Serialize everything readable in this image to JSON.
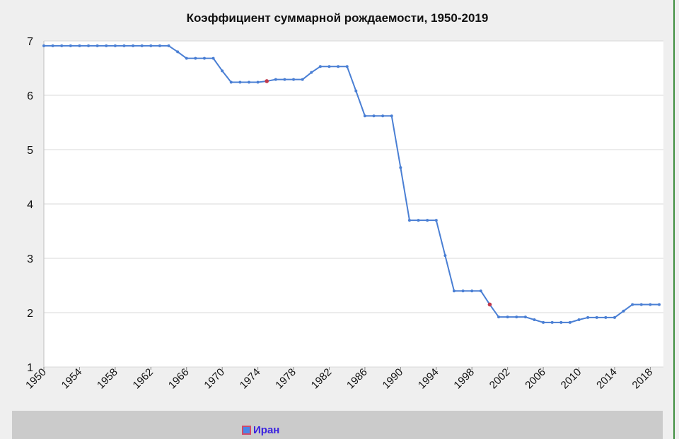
{
  "chart_data": {
    "type": "line",
    "title": "Коэффициент суммарной рождаемости, 1950-2019",
    "xlabel": "",
    "ylabel": "",
    "ylim": [
      1,
      7
    ],
    "yticks": [
      "1",
      "2",
      "3",
      "4",
      "5",
      "6",
      "7"
    ],
    "xlim": [
      1950,
      2019
    ],
    "xticks": [
      "1950",
      "1954",
      "1958",
      "1962",
      "1966",
      "1970",
      "1974",
      "1978",
      "1982",
      "1986",
      "1990",
      "1994",
      "1998",
      "2002",
      "2006",
      "2010",
      "2014",
      "2018"
    ],
    "grid": true,
    "legend_position": "bottom",
    "line_color": "#4a7fd4",
    "highlight_color": "#c0394b",
    "highlighted_years": [
      1975,
      2000
    ],
    "series": [
      {
        "name": "Иран",
        "x": [
          1950,
          1951,
          1952,
          1953,
          1954,
          1955,
          1956,
          1957,
          1958,
          1959,
          1960,
          1961,
          1962,
          1963,
          1964,
          1965,
          1966,
          1967,
          1968,
          1969,
          1970,
          1971,
          1972,
          1973,
          1974,
          1975,
          1976,
          1977,
          1978,
          1979,
          1980,
          1981,
          1982,
          1983,
          1984,
          1985,
          1986,
          1987,
          1988,
          1989,
          1990,
          1991,
          1992,
          1993,
          1994,
          1995,
          1996,
          1997,
          1998,
          1999,
          2000,
          2001,
          2002,
          2003,
          2004,
          2005,
          2006,
          2007,
          2008,
          2009,
          2010,
          2011,
          2012,
          2013,
          2014,
          2015,
          2016,
          2017,
          2018,
          2019
        ],
        "values": [
          6.91,
          6.91,
          6.91,
          6.91,
          6.91,
          6.91,
          6.91,
          6.91,
          6.91,
          6.91,
          6.91,
          6.91,
          6.91,
          6.91,
          6.91,
          6.8,
          6.68,
          6.68,
          6.68,
          6.68,
          6.45,
          6.24,
          6.24,
          6.24,
          6.24,
          6.26,
          6.29,
          6.29,
          6.29,
          6.29,
          6.42,
          6.53,
          6.53,
          6.53,
          6.53,
          6.08,
          5.62,
          5.62,
          5.62,
          5.62,
          4.67,
          3.7,
          3.7,
          3.7,
          3.7,
          3.05,
          2.4,
          2.4,
          2.4,
          2.4,
          2.15,
          1.92,
          1.92,
          1.92,
          1.92,
          1.87,
          1.82,
          1.82,
          1.82,
          1.82,
          1.87,
          1.91,
          1.91,
          1.91,
          1.91,
          2.03,
          2.15,
          2.15,
          2.15,
          2.15
        ]
      }
    ]
  },
  "legend": {
    "label": "Иран"
  }
}
